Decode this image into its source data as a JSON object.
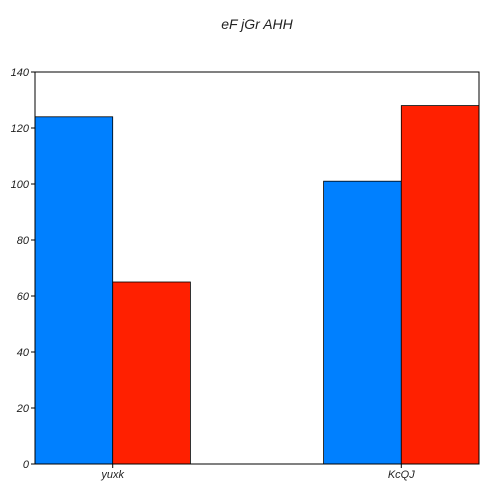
{
  "chart_data": {
    "type": "bar",
    "title": "eF jGr AHH",
    "xlabel": "",
    "ylabel": "",
    "categories": [
      "yuxk",
      "KcQJ"
    ],
    "series": [
      {
        "values": [
          124,
          101
        ],
        "color": "#0080ff"
      },
      {
        "values": [
          65,
          128
        ],
        "color": "#ff2000"
      }
    ],
    "ylim": [
      0,
      140
    ],
    "yticks": [
      0,
      20,
      40,
      60,
      80,
      100,
      120,
      140
    ],
    "grid": false,
    "legend": "none"
  }
}
